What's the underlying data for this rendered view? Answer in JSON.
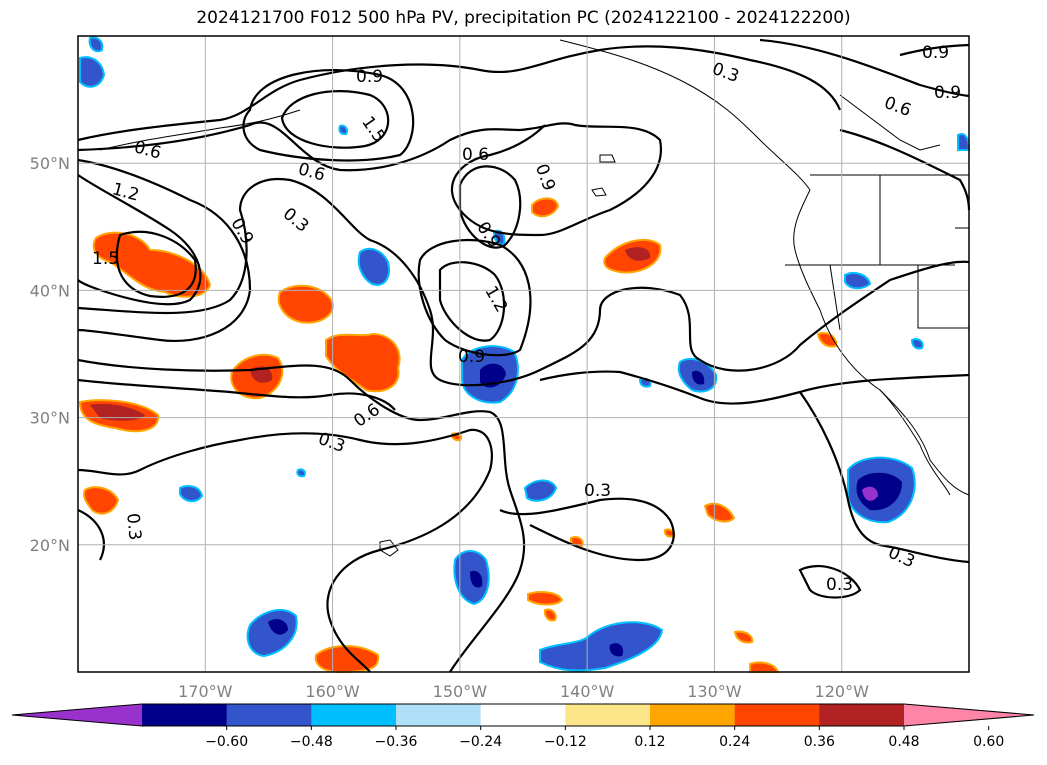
{
  "title": "2024121700 F012 500 hPa PV, precipitation PC (2024122100 - 2024122200)",
  "map": {
    "lon_range": [
      -180,
      -110
    ],
    "lat_range": [
      10,
      60
    ],
    "lat_labels": [
      {
        "lat": 50,
        "text": "50°N"
      },
      {
        "lat": 40,
        "text": "40°N"
      },
      {
        "lat": 30,
        "text": "30°N"
      },
      {
        "lat": 20,
        "text": "20°N"
      }
    ],
    "lon_labels": [
      {
        "lon": -170,
        "text": "170°W"
      },
      {
        "lon": -160,
        "text": "160°W"
      },
      {
        "lon": -150,
        "text": "150°W"
      },
      {
        "lon": -140,
        "text": "140°W"
      },
      {
        "lon": -130,
        "text": "130°W"
      },
      {
        "lon": -120,
        "text": "120°W"
      }
    ],
    "pv_contour_labels": [
      "0.3",
      "0.6",
      "0.9",
      "1.2",
      "1.5"
    ]
  },
  "colorbar": {
    "colors": [
      "#9932cc",
      "#00008b",
      "#3355cc",
      "#00bfff",
      "#b0e0f8",
      "#ffffff",
      "#fde68a",
      "#ffa500",
      "#ff4500",
      "#b22222",
      "#ff85a8"
    ],
    "ticks": [
      "−0.60",
      "−0.48",
      "−0.36",
      "−0.24",
      "−0.12",
      "0.12",
      "0.24",
      "0.36",
      "0.48",
      "0.60"
    ]
  }
}
